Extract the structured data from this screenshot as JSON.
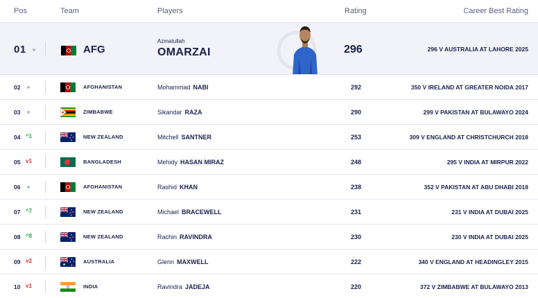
{
  "headers": {
    "pos": "Pos",
    "team": "Team",
    "players": "Players",
    "rating": "Rating",
    "career_best": "Career Best Rating"
  },
  "top": {
    "pos": "01",
    "team": "AFG",
    "first_name": "Azmatullah",
    "last_name": "OMARZAI",
    "rating": "296",
    "career_best": "296 V AUSTRALIA AT LAHORE 2025",
    "flag": "afghanistan"
  },
  "rows": [
    {
      "pos": "02",
      "move": "",
      "dir": "none",
      "team": "AFGHANISTAN",
      "flag": "afghanistan",
      "first": "Mohammad",
      "last": "NABI",
      "rating": "292",
      "best": "350 V IRELAND AT GREATER NOIDA 2017"
    },
    {
      "pos": "03",
      "move": "",
      "dir": "none",
      "team": "ZIMBABWE",
      "flag": "zimbabwe",
      "first": "Sikandar",
      "last": "RAZA",
      "rating": "290",
      "best": "299 V PAKISTAN AT BULAWAYO 2024"
    },
    {
      "pos": "04",
      "move": "^1",
      "dir": "up",
      "team": "NEW ZEALAND",
      "flag": "newzealand",
      "first": "Mitchell",
      "last": "SANTNER",
      "rating": "253",
      "best": "309 V ENGLAND AT CHRISTCHURCH 2018"
    },
    {
      "pos": "05",
      "move": "v1",
      "dir": "down",
      "team": "BANGLADESH",
      "flag": "bangladesh",
      "first": "Mehidy",
      "last": "HASAN MIRAZ",
      "rating": "248",
      "best": "295 V INDIA AT MIRPUR 2022"
    },
    {
      "pos": "06",
      "move": "",
      "dir": "none",
      "team": "AFGHANISTAN",
      "flag": "afghanistan",
      "first": "Rashid",
      "last": "KHAN",
      "rating": "238",
      "best": "352 V PAKISTAN AT ABU DHABI 2018"
    },
    {
      "pos": "07",
      "move": "^7",
      "dir": "up",
      "team": "NEW ZEALAND",
      "flag": "newzealand",
      "first": "Michael",
      "last": "BRACEWELL",
      "rating": "231",
      "best": "231 V INDIA AT DUBAI 2025"
    },
    {
      "pos": "08",
      "move": "^8",
      "dir": "up",
      "team": "NEW ZEALAND",
      "flag": "newzealand",
      "first": "Rachin",
      "last": "RAVINDRA",
      "rating": "230",
      "best": "230 V INDIA AT DUBAI 2025"
    },
    {
      "pos": "09",
      "move": "v2",
      "dir": "down",
      "team": "AUSTRALIA",
      "flag": "australia",
      "first": "Glenn",
      "last": "MAXWELL",
      "rating": "222",
      "best": "340 V ENGLAND AT HEADINGLEY 2015"
    },
    {
      "pos": "10",
      "move": "v1",
      "dir": "down",
      "team": "INDIA",
      "flag": "india",
      "first": "Ravindra",
      "last": "JADEJA",
      "rating": "220",
      "best": "372 V ZIMBABWE AT BULAWAYO 2013"
    }
  ]
}
